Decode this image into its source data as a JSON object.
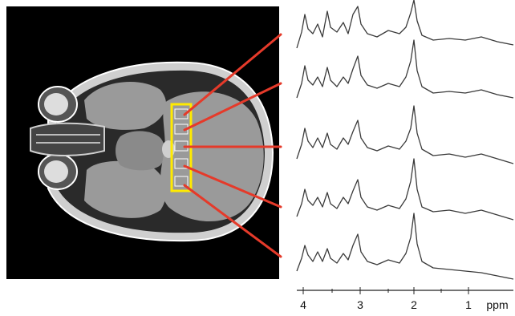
{
  "figure": {
    "axis": {
      "tick_labels": [
        "4",
        "3",
        "2",
        "1"
      ],
      "unit_label": "ppm"
    },
    "roi_markers": 5,
    "spectra_count": 5,
    "colors": {
      "background_panel": "#000000",
      "brain_tissue": "#9a9a9a",
      "roi_box": "#ffea00",
      "connector_lines": "#e53a2a",
      "spectrum_trace": "#3a3a3a"
    }
  }
}
